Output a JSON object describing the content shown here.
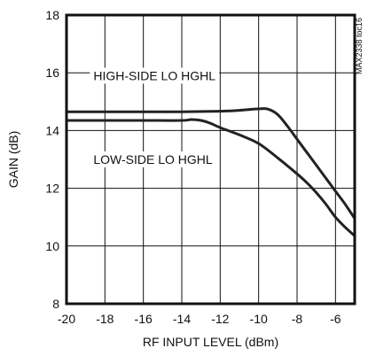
{
  "chart_data": {
    "type": "line",
    "xlabel": "RF INPUT LEVEL (dBm)",
    "ylabel": "GAIN (dB)",
    "xlim": [
      -20,
      -5
    ],
    "ylim": [
      8,
      18
    ],
    "xticks": [
      -20,
      -18,
      -16,
      -14,
      -12,
      -10,
      -8,
      -6
    ],
    "yticks": [
      8,
      10,
      12,
      14,
      16,
      18
    ],
    "x_tick_labels": [
      "-20",
      "-18",
      "-16",
      "-14",
      "-12",
      "-10",
      "-8",
      "-6"
    ],
    "y_tick_labels": [
      "8",
      "10",
      "12",
      "14",
      "16",
      "18"
    ],
    "grid": true,
    "legend": "none",
    "doc_id": "MAX2338 toc16",
    "series": [
      {
        "name": "HIGH-SIDE LO HGHL",
        "x": [
          -20,
          -18,
          -16,
          -14,
          -12,
          -11,
          -10,
          -9.5,
          -9,
          -8.5,
          -8,
          -7.5,
          -7,
          -6.5,
          -6,
          -5.5,
          -5
        ],
        "y": [
          14.65,
          14.65,
          14.65,
          14.65,
          14.67,
          14.7,
          14.75,
          14.74,
          14.55,
          14.15,
          13.7,
          13.25,
          12.8,
          12.35,
          11.9,
          11.45,
          10.95
        ]
      },
      {
        "name": "LOW-SIDE LO HGHL",
        "x": [
          -20,
          -18,
          -16,
          -14,
          -13.5,
          -13,
          -12.5,
          -12,
          -11,
          -10,
          -9,
          -8,
          -7.5,
          -7,
          -6.5,
          -6,
          -5.5,
          -5
        ],
        "y": [
          14.35,
          14.35,
          14.35,
          14.35,
          14.38,
          14.35,
          14.25,
          14.1,
          13.85,
          13.55,
          13.05,
          12.5,
          12.2,
          11.85,
          11.45,
          11.0,
          10.65,
          10.35
        ]
      }
    ],
    "annotations": [
      {
        "text": "HIGH-SIDE LO HGHL",
        "x": -18.6,
        "y": 15.9
      },
      {
        "text": "LOW-SIDE LO HGHL",
        "x": -18.6,
        "y": 13.0
      }
    ],
    "colors": {
      "line": "#222222",
      "grid": "#111111",
      "frame": "#111111"
    }
  }
}
